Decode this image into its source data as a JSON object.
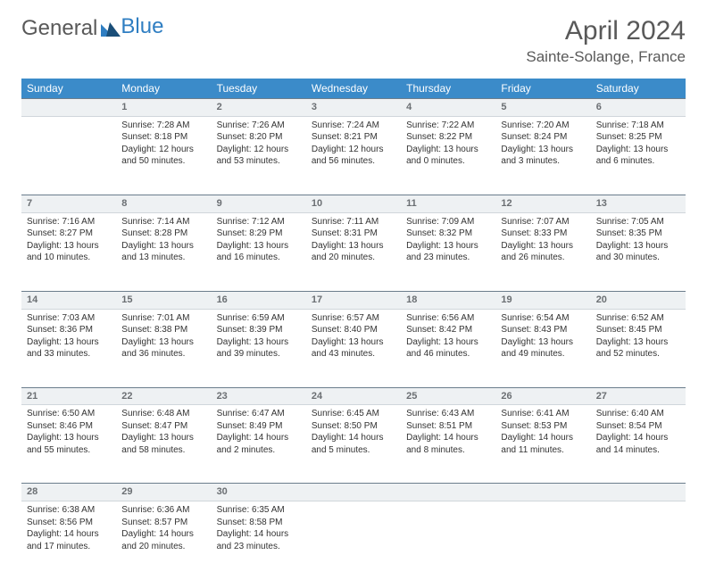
{
  "brand": {
    "part1": "General",
    "part2": "Blue"
  },
  "title": "April 2024",
  "location": "Sainte-Solange, France",
  "colors": {
    "header_bg": "#3b8bc9",
    "header_text": "#ffffff",
    "daynum_bg": "#eef1f3",
    "body_text": "#333333",
    "title_text": "#595959"
  },
  "weekdays": [
    "Sunday",
    "Monday",
    "Tuesday",
    "Wednesday",
    "Thursday",
    "Friday",
    "Saturday"
  ],
  "weeks": [
    {
      "nums": [
        "",
        "1",
        "2",
        "3",
        "4",
        "5",
        "6"
      ],
      "cells": [
        null,
        {
          "sunrise": "Sunrise: 7:28 AM",
          "sunset": "Sunset: 8:18 PM",
          "day1": "Daylight: 12 hours",
          "day2": "and 50 minutes."
        },
        {
          "sunrise": "Sunrise: 7:26 AM",
          "sunset": "Sunset: 8:20 PM",
          "day1": "Daylight: 12 hours",
          "day2": "and 53 minutes."
        },
        {
          "sunrise": "Sunrise: 7:24 AM",
          "sunset": "Sunset: 8:21 PM",
          "day1": "Daylight: 12 hours",
          "day2": "and 56 minutes."
        },
        {
          "sunrise": "Sunrise: 7:22 AM",
          "sunset": "Sunset: 8:22 PM",
          "day1": "Daylight: 13 hours",
          "day2": "and 0 minutes."
        },
        {
          "sunrise": "Sunrise: 7:20 AM",
          "sunset": "Sunset: 8:24 PM",
          "day1": "Daylight: 13 hours",
          "day2": "and 3 minutes."
        },
        {
          "sunrise": "Sunrise: 7:18 AM",
          "sunset": "Sunset: 8:25 PM",
          "day1": "Daylight: 13 hours",
          "day2": "and 6 minutes."
        }
      ]
    },
    {
      "nums": [
        "7",
        "8",
        "9",
        "10",
        "11",
        "12",
        "13"
      ],
      "cells": [
        {
          "sunrise": "Sunrise: 7:16 AM",
          "sunset": "Sunset: 8:27 PM",
          "day1": "Daylight: 13 hours",
          "day2": "and 10 minutes."
        },
        {
          "sunrise": "Sunrise: 7:14 AM",
          "sunset": "Sunset: 8:28 PM",
          "day1": "Daylight: 13 hours",
          "day2": "and 13 minutes."
        },
        {
          "sunrise": "Sunrise: 7:12 AM",
          "sunset": "Sunset: 8:29 PM",
          "day1": "Daylight: 13 hours",
          "day2": "and 16 minutes."
        },
        {
          "sunrise": "Sunrise: 7:11 AM",
          "sunset": "Sunset: 8:31 PM",
          "day1": "Daylight: 13 hours",
          "day2": "and 20 minutes."
        },
        {
          "sunrise": "Sunrise: 7:09 AM",
          "sunset": "Sunset: 8:32 PM",
          "day1": "Daylight: 13 hours",
          "day2": "and 23 minutes."
        },
        {
          "sunrise": "Sunrise: 7:07 AM",
          "sunset": "Sunset: 8:33 PM",
          "day1": "Daylight: 13 hours",
          "day2": "and 26 minutes."
        },
        {
          "sunrise": "Sunrise: 7:05 AM",
          "sunset": "Sunset: 8:35 PM",
          "day1": "Daylight: 13 hours",
          "day2": "and 30 minutes."
        }
      ]
    },
    {
      "nums": [
        "14",
        "15",
        "16",
        "17",
        "18",
        "19",
        "20"
      ],
      "cells": [
        {
          "sunrise": "Sunrise: 7:03 AM",
          "sunset": "Sunset: 8:36 PM",
          "day1": "Daylight: 13 hours",
          "day2": "and 33 minutes."
        },
        {
          "sunrise": "Sunrise: 7:01 AM",
          "sunset": "Sunset: 8:38 PM",
          "day1": "Daylight: 13 hours",
          "day2": "and 36 minutes."
        },
        {
          "sunrise": "Sunrise: 6:59 AM",
          "sunset": "Sunset: 8:39 PM",
          "day1": "Daylight: 13 hours",
          "day2": "and 39 minutes."
        },
        {
          "sunrise": "Sunrise: 6:57 AM",
          "sunset": "Sunset: 8:40 PM",
          "day1": "Daylight: 13 hours",
          "day2": "and 43 minutes."
        },
        {
          "sunrise": "Sunrise: 6:56 AM",
          "sunset": "Sunset: 8:42 PM",
          "day1": "Daylight: 13 hours",
          "day2": "and 46 minutes."
        },
        {
          "sunrise": "Sunrise: 6:54 AM",
          "sunset": "Sunset: 8:43 PM",
          "day1": "Daylight: 13 hours",
          "day2": "and 49 minutes."
        },
        {
          "sunrise": "Sunrise: 6:52 AM",
          "sunset": "Sunset: 8:45 PM",
          "day1": "Daylight: 13 hours",
          "day2": "and 52 minutes."
        }
      ]
    },
    {
      "nums": [
        "21",
        "22",
        "23",
        "24",
        "25",
        "26",
        "27"
      ],
      "cells": [
        {
          "sunrise": "Sunrise: 6:50 AM",
          "sunset": "Sunset: 8:46 PM",
          "day1": "Daylight: 13 hours",
          "day2": "and 55 minutes."
        },
        {
          "sunrise": "Sunrise: 6:48 AM",
          "sunset": "Sunset: 8:47 PM",
          "day1": "Daylight: 13 hours",
          "day2": "and 58 minutes."
        },
        {
          "sunrise": "Sunrise: 6:47 AM",
          "sunset": "Sunset: 8:49 PM",
          "day1": "Daylight: 14 hours",
          "day2": "and 2 minutes."
        },
        {
          "sunrise": "Sunrise: 6:45 AM",
          "sunset": "Sunset: 8:50 PM",
          "day1": "Daylight: 14 hours",
          "day2": "and 5 minutes."
        },
        {
          "sunrise": "Sunrise: 6:43 AM",
          "sunset": "Sunset: 8:51 PM",
          "day1": "Daylight: 14 hours",
          "day2": "and 8 minutes."
        },
        {
          "sunrise": "Sunrise: 6:41 AM",
          "sunset": "Sunset: 8:53 PM",
          "day1": "Daylight: 14 hours",
          "day2": "and 11 minutes."
        },
        {
          "sunrise": "Sunrise: 6:40 AM",
          "sunset": "Sunset: 8:54 PM",
          "day1": "Daylight: 14 hours",
          "day2": "and 14 minutes."
        }
      ]
    },
    {
      "nums": [
        "28",
        "29",
        "30",
        "",
        "",
        "",
        ""
      ],
      "cells": [
        {
          "sunrise": "Sunrise: 6:38 AM",
          "sunset": "Sunset: 8:56 PM",
          "day1": "Daylight: 14 hours",
          "day2": "and 17 minutes."
        },
        {
          "sunrise": "Sunrise: 6:36 AM",
          "sunset": "Sunset: 8:57 PM",
          "day1": "Daylight: 14 hours",
          "day2": "and 20 minutes."
        },
        {
          "sunrise": "Sunrise: 6:35 AM",
          "sunset": "Sunset: 8:58 PM",
          "day1": "Daylight: 14 hours",
          "day2": "and 23 minutes."
        },
        null,
        null,
        null,
        null
      ]
    }
  ]
}
